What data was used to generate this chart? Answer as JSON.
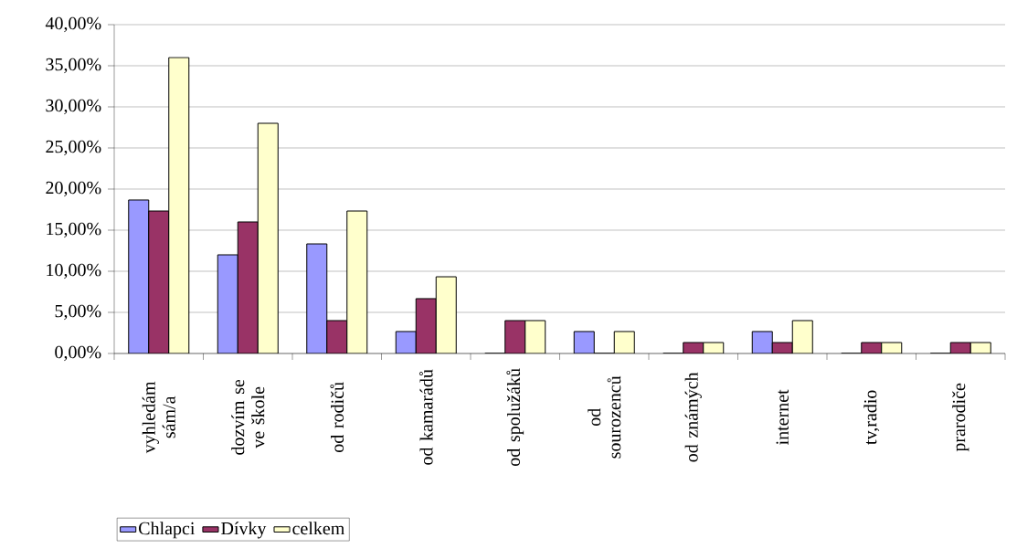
{
  "chart_data": {
    "type": "bar",
    "categories": [
      "vyhledám sám/a",
      "dozvím se ve škole",
      "od rodičů",
      "od kamarádů",
      "od spolužáků",
      "od sourozenců",
      "od známých",
      "internet",
      "tv,radio",
      "prarodiče"
    ],
    "series": [
      {
        "name": "Chlapci",
        "color": "#9999ff",
        "values": [
          18.67,
          12,
          13.33,
          2.67,
          0,
          2.67,
          0,
          2.67,
          0,
          0
        ]
      },
      {
        "name": "Dívky",
        "color": "#993366",
        "values": [
          17.33,
          16,
          4,
          6.67,
          4,
          0,
          1.33,
          1.33,
          1.33,
          1.33
        ]
      },
      {
        "name": "celkem",
        "color": "#ffffcc",
        "values": [
          36,
          28,
          17.33,
          9.33,
          4,
          2.67,
          1.33,
          4,
          1.33,
          1.33
        ]
      }
    ],
    "ylim": [
      0,
      40
    ],
    "yticks": [
      {
        "value": 0,
        "label": "0,00%"
      },
      {
        "value": 5,
        "label": "5,00%"
      },
      {
        "value": 10,
        "label": "10,00%"
      },
      {
        "value": 15,
        "label": "15,00%"
      },
      {
        "value": 20,
        "label": "20,00%"
      },
      {
        "value": 25,
        "label": "25,00%"
      },
      {
        "value": 30,
        "label": "30,00%"
      },
      {
        "value": 35,
        "label": "35,00%"
      },
      {
        "value": 40,
        "label": "40,00%"
      }
    ],
    "grid": "y",
    "legend": "bottom left"
  }
}
